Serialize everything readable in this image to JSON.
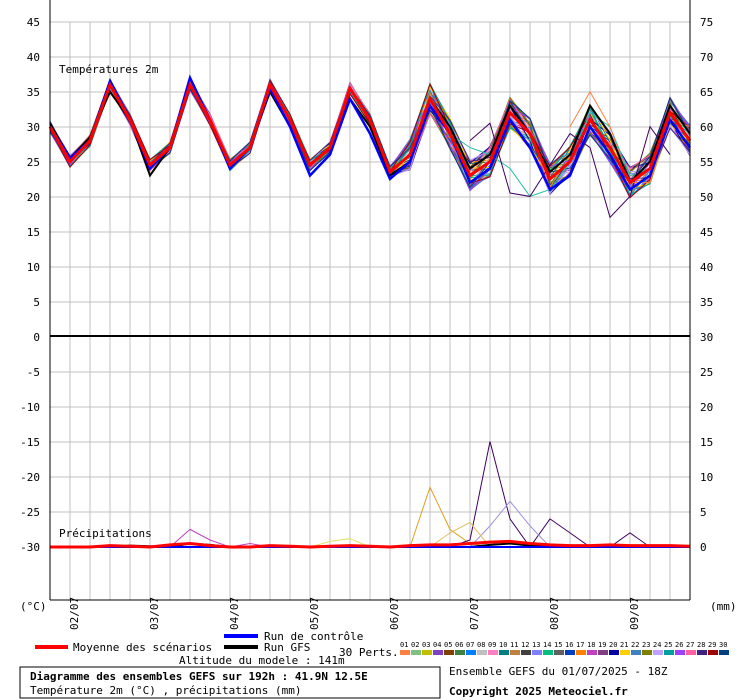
{
  "chart_data": {
    "type": "line",
    "title": "Diagramme des ensembles GEFS sur 192h : 41.9N 12.5E",
    "subtitle": "Température 2m (°C) , précipitations (mm)",
    "run_info": "Ensemble GEFS du 01/07/2025 - 18Z",
    "copyright": "Copyright 2025 Meteociel.fr",
    "altitude": "Altitude du modele : 141m",
    "left_axis_label": "(°C)",
    "right_axis_label": "(mm)",
    "temp_panel_label": "Températures 2m",
    "precip_panel_label": "Précipitations",
    "left_ticks": [
      "45",
      "40",
      "35",
      "30",
      "25",
      "20",
      "15",
      "10",
      "5",
      "0",
      "-5",
      "-10",
      "-15",
      "-20",
      "-25",
      "-30"
    ],
    "right_ticks": [
      "75",
      "70",
      "65",
      "60",
      "55",
      "50",
      "45",
      "40",
      "35",
      "30",
      "25",
      "20",
      "15",
      "10",
      "5",
      "0"
    ],
    "x_ticks": [
      "02/07",
      "03/07",
      "04/07",
      "05/07",
      "06/07",
      "07/07",
      "08/07",
      "09/07"
    ],
    "temp_ylim": [
      0,
      45
    ],
    "precip_ylim": [
      0,
      30
    ],
    "steps_hours": [
      0,
      6,
      12,
      18,
      24,
      30,
      36,
      42,
      48,
      54,
      60,
      66,
      72,
      78,
      84,
      90,
      96,
      102,
      108,
      114,
      120,
      126,
      132,
      138,
      144,
      150,
      156,
      162,
      168,
      174,
      180,
      186,
      192
    ],
    "series": [
      {
        "name": "Moyenne des scénarios",
        "color": "#ff0000",
        "temp": [
          30,
          25,
          28,
          36,
          31,
          24.5,
          27,
          36,
          31,
          24.5,
          27,
          36,
          31,
          24.5,
          27,
          35.5,
          31,
          23.5,
          26,
          34,
          29,
          23,
          25,
          32,
          29,
          22.5,
          25,
          31,
          27,
          22,
          24,
          32,
          28
        ],
        "precip": [
          0,
          0,
          0,
          0.2,
          0.1,
          0,
          0.3,
          0.5,
          0.2,
          0,
          0,
          0.2,
          0.1,
          0,
          0.1,
          0.2,
          0.1,
          0,
          0.2,
          0.3,
          0.3,
          0.5,
          0.7,
          0.8,
          0.5,
          0.3,
          0.2,
          0.2,
          0.3,
          0.2,
          0.2,
          0.2,
          0.1
        ]
      },
      {
        "name": "Run de contrôle",
        "color": "#0000ff",
        "temp": [
          30,
          25.5,
          28,
          36.5,
          31,
          24,
          27,
          37,
          31,
          24,
          27,
          35.5,
          30,
          23,
          26,
          34,
          29,
          22.5,
          25,
          33,
          29,
          22,
          24,
          31,
          27,
          21,
          23,
          30,
          26,
          21,
          23,
          31,
          27
        ],
        "precip": [
          0,
          0,
          0,
          0,
          0,
          0,
          0,
          0,
          0,
          0,
          0,
          0,
          0,
          0,
          0,
          0,
          0,
          0,
          0,
          0,
          0,
          0,
          0,
          0,
          0,
          0,
          0,
          0,
          0,
          0,
          0,
          0,
          0
        ]
      },
      {
        "name": "Run GFS",
        "color": "#000000",
        "temp": [
          30.5,
          25.5,
          28.5,
          35,
          31,
          23,
          27,
          36,
          31,
          24,
          27,
          35,
          30,
          23,
          26,
          34,
          30,
          23,
          25,
          34,
          30,
          24,
          26,
          33,
          29,
          23.5,
          26,
          33,
          29,
          22,
          25,
          33,
          29
        ],
        "precip": [
          0,
          0,
          0,
          0,
          0.2,
          0.1,
          0,
          0.5,
          0.3,
          0,
          0,
          0,
          0,
          0,
          0,
          0.1,
          0,
          0,
          0,
          0,
          0,
          0,
          0.3,
          0.5,
          0.2,
          0,
          0,
          0,
          0,
          0,
          0,
          0,
          0
        ]
      }
    ],
    "perturbations_label": "30 Perts.",
    "perturbation_names": [
      "01",
      "02",
      "03",
      "04",
      "05",
      "06",
      "07",
      "08",
      "09",
      "10",
      "11",
      "12",
      "13",
      "14",
      "15",
      "16",
      "17",
      "18",
      "19",
      "20",
      "21",
      "22",
      "23",
      "24",
      "25",
      "26",
      "27",
      "28",
      "29",
      "30"
    ],
    "perturbation_colors": [
      "#ff8040",
      "#80c080",
      "#c0c000",
      "#8040c0",
      "#804000",
      "#408040",
      "#0080ff",
      "#c0c0c0",
      "#ff80c0",
      "#008080",
      "#c08040",
      "#404040",
      "#8080ff",
      "#00c080",
      "#606060",
      "#0040c0",
      "#ff8000",
      "#c040c0",
      "#804080",
      "#0000a0",
      "#ffd000",
      "#4080c0",
      "#808000",
      "#c0a0ff",
      "#00a0a0",
      "#a040ff",
      "#ff60a0",
      "#402080",
      "#a00000",
      "#004080"
    ],
    "perturbation_outliers": [
      {
        "id": "07",
        "color": "#20c0a0",
        "temp_tail": {
          "from_step": 20,
          "values": [
            29,
            27,
            26,
            24,
            20,
            21,
            25,
            32,
            30,
            23,
            24,
            33,
            29
          ]
        }
      },
      {
        "id": "13",
        "color": "#400060",
        "temp_tail": {
          "from_step": 21,
          "values": [
            28,
            30.5,
            20.5,
            20,
            24.5,
            29,
            27,
            17,
            20,
            30,
            26
          ]
        }
      },
      {
        "id": "22",
        "color": "#ff8040",
        "temp_tail": {
          "from_step": 26,
          "values": [
            30,
            35,
            30,
            22,
            22,
            31,
            30
          ]
        }
      }
    ],
    "precip_spikes": [
      {
        "color": "#e0a020",
        "steps": [
          18,
          19,
          20,
          21,
          22
        ],
        "values": [
          0,
          8.5,
          2.5,
          0.5,
          0
        ]
      },
      {
        "color": "#400060",
        "steps": [
          20,
          21,
          22,
          23,
          24,
          25,
          26,
          27,
          28,
          29,
          30
        ],
        "values": [
          0,
          1,
          15,
          4,
          0,
          4,
          2,
          0,
          0,
          2,
          0
        ]
      },
      {
        "color": "#a090e0",
        "steps": [
          21,
          22,
          23,
          24,
          25
        ],
        "values": [
          0,
          3,
          6.5,
          3,
          0
        ]
      },
      {
        "color": "#c040c0",
        "steps": [
          6,
          7,
          8,
          9,
          10,
          11
        ],
        "values": [
          0,
          2.5,
          1,
          0,
          0.5,
          0
        ]
      },
      {
        "color": "#e0e060",
        "steps": [
          13,
          14,
          15,
          16
        ],
        "values": [
          0,
          0.8,
          1.2,
          0
        ]
      },
      {
        "color": "#e0c060",
        "steps": [
          19,
          20,
          21,
          22
        ],
        "values": [
          0,
          2,
          3.5,
          0
        ]
      }
    ]
  }
}
